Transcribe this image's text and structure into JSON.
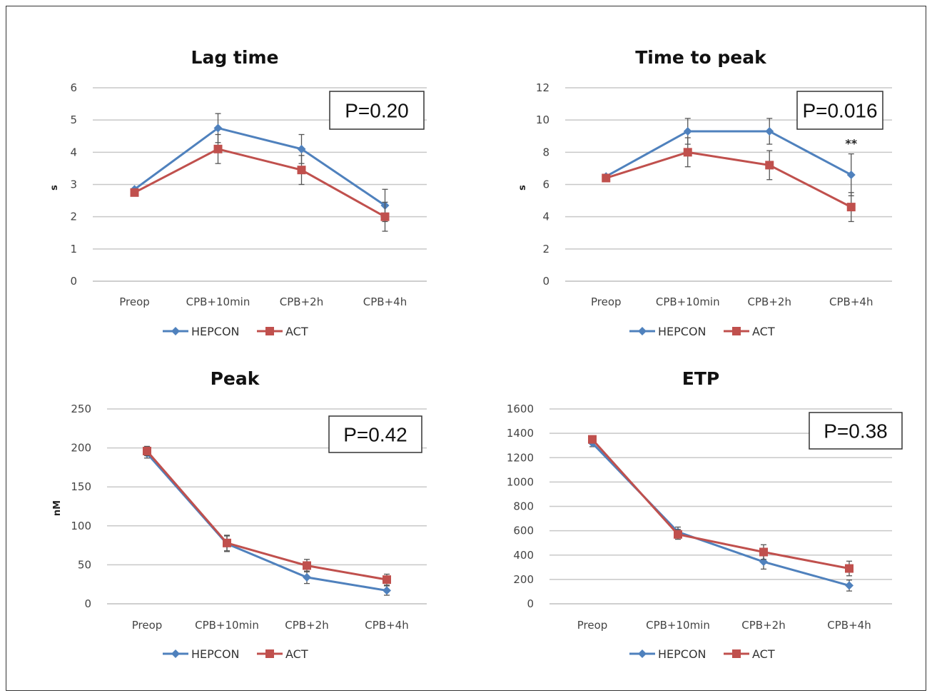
{
  "chart_data": [
    {
      "type": "line",
      "title": "Lag time",
      "ylabel": "s",
      "ylim": [
        0,
        6
      ],
      "yticks": [
        0,
        1,
        2,
        3,
        4,
        5,
        6
      ],
      "categories": [
        "Preop",
        "CPB+10min",
        "CPB+2h",
        "CPB+4h"
      ],
      "series": [
        {
          "name": "HEPCON",
          "color": "#4f81bd",
          "marker": "diamond",
          "values": [
            2.85,
            4.75,
            4.1,
            2.35
          ],
          "errors": [
            0,
            0.45,
            0.45,
            0.5
          ]
        },
        {
          "name": "ACT",
          "color": "#c0504d",
          "marker": "square",
          "values": [
            2.75,
            4.1,
            3.45,
            2.0
          ],
          "errors": [
            0,
            0.45,
            0.45,
            0.45
          ]
        }
      ],
      "p_value": "P=0.20",
      "annotations": [],
      "legend": "bottom"
    },
    {
      "type": "line",
      "title": "Time to peak",
      "ylabel": "s",
      "ylim": [
        0,
        12
      ],
      "yticks": [
        0,
        2,
        4,
        6,
        8,
        10,
        12
      ],
      "categories": [
        "Preop",
        "CPB+10min",
        "CPB+2h",
        "CPB+4h"
      ],
      "series": [
        {
          "name": "HEPCON",
          "color": "#4f81bd",
          "marker": "diamond",
          "values": [
            6.5,
            9.3,
            9.3,
            6.6
          ],
          "errors": [
            0,
            0.8,
            0.8,
            1.3
          ]
        },
        {
          "name": "ACT",
          "color": "#c0504d",
          "marker": "square",
          "values": [
            6.4,
            8.0,
            7.2,
            4.6
          ],
          "errors": [
            0,
            0.9,
            0.9,
            0.9
          ]
        }
      ],
      "p_value": "P=0.016",
      "annotations": [
        {
          "text": "**",
          "category": "CPB+4h",
          "y": 8.3
        }
      ],
      "legend": "bottom"
    },
    {
      "type": "line",
      "title": "Peak",
      "ylabel": "nM",
      "ylim": [
        0,
        250
      ],
      "yticks": [
        0,
        50,
        100,
        150,
        200,
        250
      ],
      "categories": [
        "Preop",
        "CPB+10min",
        "CPB+2h",
        "CPB+4h"
      ],
      "series": [
        {
          "name": "HEPCON",
          "color": "#4f81bd",
          "marker": "diamond",
          "values": [
            193,
            77,
            34,
            17
          ],
          "errors": [
            6,
            10,
            8,
            6
          ]
        },
        {
          "name": "ACT",
          "color": "#c0504d",
          "marker": "square",
          "values": [
            196,
            78,
            49,
            31
          ],
          "errors": [
            6,
            10,
            8,
            7
          ]
        }
      ],
      "p_value": "P=0.42",
      "annotations": [],
      "legend": "bottom"
    },
    {
      "type": "line",
      "title": "ETP",
      "ylabel": "",
      "ylim": [
        0,
        1600
      ],
      "yticks": [
        0,
        200,
        400,
        600,
        800,
        1000,
        1200,
        1400,
        1600
      ],
      "categories": [
        "Preop",
        "CPB+10min",
        "CPB+2h",
        "CPB+4h"
      ],
      "series": [
        {
          "name": "HEPCON",
          "color": "#4f81bd",
          "marker": "diamond",
          "values": [
            1320,
            590,
            345,
            150
          ],
          "errors": [
            30,
            40,
            60,
            45
          ]
        },
        {
          "name": "ACT",
          "color": "#c0504d",
          "marker": "square",
          "values": [
            1350,
            570,
            425,
            290
          ],
          "errors": [
            30,
            40,
            60,
            60
          ]
        }
      ],
      "p_value": "P=0.38",
      "annotations": [],
      "legend": "bottom"
    }
  ]
}
